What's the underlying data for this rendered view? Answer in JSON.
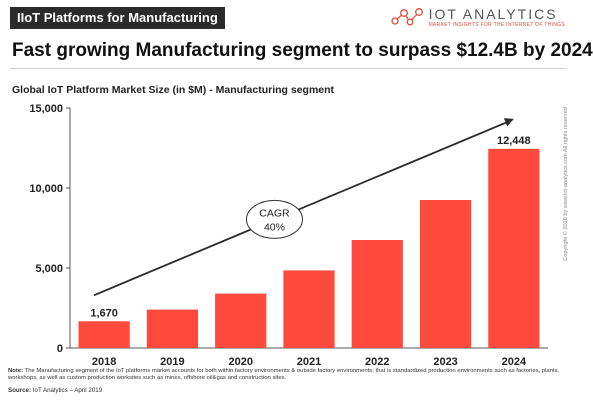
{
  "header": {
    "tag": "IIoT Platforms for Manufacturing",
    "headline": "Fast growing Manufacturing segment to surpass $12.4B by 2024"
  },
  "brand": {
    "name": "IOT ANALYTICS",
    "tagline": "MARKET INSIGHTS FOR THE INTERNET OF THINGS",
    "icon": "network-nodes-logo"
  },
  "colors": {
    "bar": "#fd4a3c",
    "arrow": "#2b2b2b",
    "accent": "#e84b3c"
  },
  "chart_data": {
    "type": "bar",
    "title": "Global IoT Platform Market Size (in $M) - Manufacturing segment",
    "categories": [
      "2018",
      "2019",
      "2020",
      "2021",
      "2022",
      "2023",
      "2024"
    ],
    "values": [
      1670,
      2400,
      3400,
      4850,
      6750,
      9250,
      12448
    ],
    "data_labels": [
      {
        "category": "2018",
        "text": "1,670"
      },
      {
        "category": "2024",
        "text": "12,448"
      }
    ],
    "ylim": [
      0,
      15000
    ],
    "yticks": [
      0,
      5000,
      10000,
      15000
    ],
    "ytick_labels": [
      "0",
      "5,000",
      "10,000",
      "15,000"
    ],
    "grid": false,
    "annotation": {
      "line1": "CAGR",
      "line2": "40%"
    }
  },
  "copyright": "Copyright © 2018 by www.iot-analytics.com All rights reserved",
  "note": {
    "label": "Note:",
    "text": "The Manufacturing segment of the IoT platforms market accounts for both within factory environments & outside factory environments; that is standardized production environments such as factories, plants, workshops, as well as custom production worksites such as mines, offshore oil&gas and construction sites."
  },
  "source": {
    "label": "Source:",
    "text": "IoT Analytics – April 2019"
  }
}
